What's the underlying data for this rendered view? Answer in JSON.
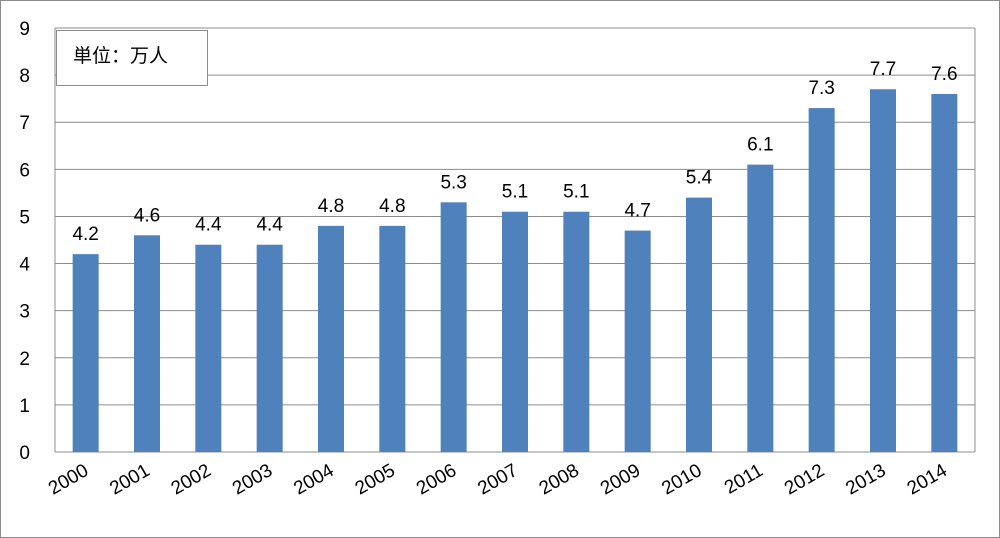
{
  "chart_data": {
    "type": "bar",
    "title": "",
    "xlabel": "",
    "ylabel": "",
    "unit_note": "単位：万人",
    "categories": [
      "2000",
      "2001",
      "2002",
      "2003",
      "2004",
      "2005",
      "2006",
      "2007",
      "2008",
      "2009",
      "2010",
      "2011",
      "2012",
      "2013",
      "2014"
    ],
    "values": [
      4.2,
      4.6,
      4.4,
      4.4,
      4.8,
      4.8,
      5.3,
      5.1,
      5.1,
      4.7,
      5.4,
      6.1,
      7.3,
      7.7,
      7.6
    ],
    "data_labels": [
      "4.2",
      "4.6",
      "4.4",
      "4.4",
      "4.8",
      "4.8",
      "5.3",
      "5.1",
      "5.1",
      "4.7",
      "5.4",
      "6.1",
      "7.3",
      "7.7",
      "7.6"
    ],
    "ylim": [
      0,
      9
    ],
    "yticks": [
      "0",
      "1",
      "2",
      "3",
      "4",
      "5",
      "6",
      "7",
      "8",
      "9"
    ],
    "grid": true,
    "legend": "none",
    "bar_color": "#4f81bd"
  }
}
